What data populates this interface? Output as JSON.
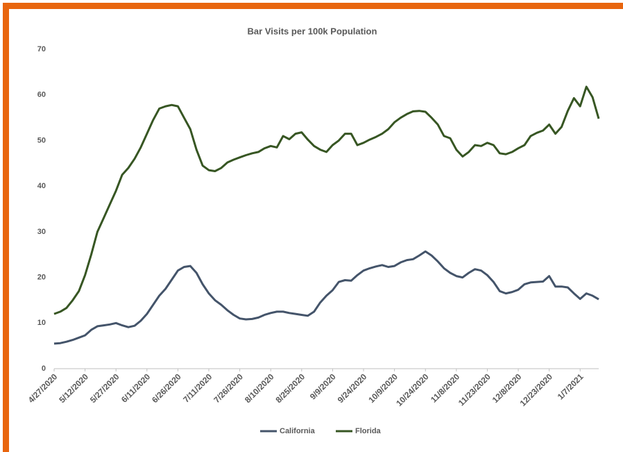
{
  "chart_data": {
    "type": "line",
    "title": "Bar Visits per 100k Population",
    "categories": [
      "4/27/2020",
      null,
      null,
      null,
      null,
      "5/12/2020",
      null,
      null,
      null,
      null,
      "5/27/2020",
      null,
      null,
      null,
      null,
      "6/11/2020",
      null,
      null,
      null,
      null,
      "6/26/2020",
      null,
      null,
      null,
      null,
      "7/11/2020",
      null,
      null,
      null,
      null,
      "7/26/2020",
      null,
      null,
      null,
      null,
      "8/10/2020",
      null,
      null,
      null,
      null,
      "8/25/2020",
      null,
      null,
      null,
      null,
      "9/9/2020",
      null,
      null,
      null,
      null,
      "9/24/2020",
      null,
      null,
      null,
      null,
      "10/9/2020",
      null,
      null,
      null,
      null,
      "10/24/2020",
      null,
      null,
      null,
      null,
      "11/8/2020",
      null,
      null,
      null,
      null,
      "11/23/2020",
      null,
      null,
      null,
      null,
      "12/8/2020",
      null,
      null,
      null,
      null,
      "12/23/2020",
      null,
      null,
      null,
      null,
      "1/7/2021",
      null,
      null,
      null
    ],
    "series": [
      {
        "name": "California",
        "color": "#44546a",
        "values": [
          5.5,
          5.6,
          5.9,
          6.3,
          6.8,
          7.3,
          8.5,
          9.3,
          9.5,
          9.7,
          10,
          9.5,
          9.1,
          9.4,
          10.5,
          12,
          14,
          16,
          17.5,
          19.5,
          21.5,
          22.3,
          22.5,
          21,
          18.5,
          16.5,
          15,
          14,
          12.8,
          11.8,
          11,
          10.8,
          10.9,
          11.2,
          11.8,
          12.2,
          12.5,
          12.5,
          12.2,
          12,
          11.8,
          11.6,
          12.5,
          14.5,
          16,
          17.2,
          19,
          19.4,
          19.3,
          20.5,
          21.5,
          22,
          22.4,
          22.7,
          22.3,
          22.5,
          23.3,
          23.8,
          24,
          24.8,
          25.7,
          24.8,
          23.5,
          22,
          21,
          20.3,
          20,
          21,
          21.8,
          21.5,
          20.5,
          19,
          17,
          16.5,
          16.8,
          17.3,
          18.5,
          18.9,
          19,
          19.1,
          20.3,
          18,
          18,
          17.8,
          16.5,
          15.3,
          16.5,
          16,
          15.2
        ]
      },
      {
        "name": "Florida",
        "color": "#375623",
        "values": [
          12,
          12.5,
          13.3,
          15,
          17,
          20.5,
          25,
          30,
          33,
          36,
          39,
          42.5,
          44,
          46,
          48.5,
          51.5,
          54.5,
          57,
          57.5,
          57.8,
          57.5,
          55,
          52.5,
          48,
          44.5,
          43.5,
          43.3,
          44,
          45.2,
          45.8,
          46.3,
          46.8,
          47.2,
          47.5,
          48.3,
          48.8,
          48.5,
          51,
          50.3,
          51.5,
          51.8,
          50.2,
          48.8,
          48,
          47.5,
          49,
          50,
          51.5,
          51.5,
          49,
          49.5,
          50.2,
          50.8,
          51.5,
          52.5,
          54,
          55,
          55.8,
          56.4,
          56.5,
          56.3,
          55,
          53.5,
          51,
          50.5,
          48,
          46.5,
          47.5,
          49,
          48.8,
          49.5,
          49,
          47.2,
          47,
          47.5,
          48.3,
          49,
          51,
          51.7,
          52.2,
          53.5,
          51.5,
          53,
          56.5,
          59.3,
          57.5,
          61.8,
          59.5,
          54.8
        ]
      }
    ],
    "ylim": [
      0,
      70
    ],
    "yticks": [
      0,
      10,
      20,
      30,
      40,
      50,
      60,
      70
    ],
    "grid": false,
    "legend": "bottom"
  }
}
